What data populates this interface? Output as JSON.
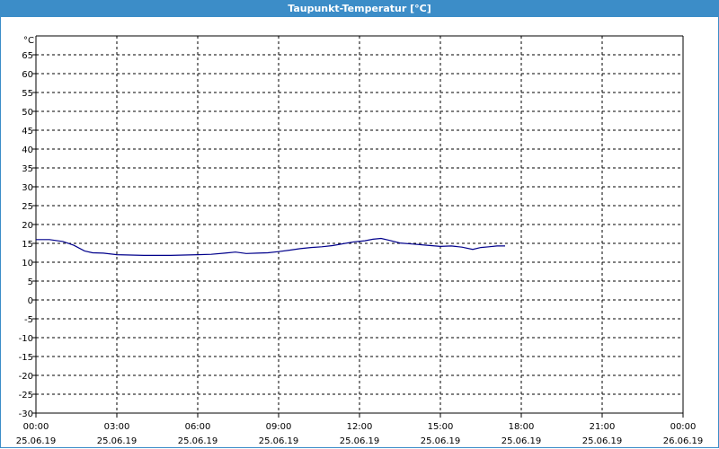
{
  "window": {
    "title": "Taupunkt-Temperatur [°C]"
  },
  "chart_data": {
    "type": "line",
    "title": "Taupunkt-Temperatur [°C]",
    "ylabel": "°C",
    "xlabel": "",
    "ylim": [
      -30,
      70
    ],
    "yticks": [
      -30,
      -25,
      -20,
      -15,
      -10,
      -5,
      0,
      5,
      10,
      15,
      20,
      25,
      30,
      35,
      40,
      45,
      50,
      55,
      60,
      65
    ],
    "xlim": [
      0,
      24
    ],
    "xticks": [
      {
        "h": 0,
        "time": "00:00",
        "date": "25.06.19"
      },
      {
        "h": 3,
        "time": "03:00",
        "date": "25.06.19"
      },
      {
        "h": 6,
        "time": "06:00",
        "date": "25.06.19"
      },
      {
        "h": 9,
        "time": "09:00",
        "date": "25.06.19"
      },
      {
        "h": 12,
        "time": "12:00",
        "date": "25.06.19"
      },
      {
        "h": 15,
        "time": "15:00",
        "date": "25.06.19"
      },
      {
        "h": 18,
        "time": "18:00",
        "date": "25.06.19"
      },
      {
        "h": 21,
        "time": "21:00",
        "date": "25.06.19"
      },
      {
        "h": 24,
        "time": "00:00",
        "date": "26.06.19"
      }
    ],
    "grid": true,
    "line_color": "#00008b",
    "series": [
      {
        "x": [
          0,
          0.5,
          1.0,
          1.4,
          1.8,
          2.1,
          2.5,
          3.0,
          3.5,
          4.0,
          4.5,
          5.0,
          5.5,
          6.0,
          6.5,
          7.0,
          7.4,
          7.8,
          8.2,
          8.6,
          9.0,
          9.4,
          9.8,
          10.2,
          10.6,
          11.0,
          11.4,
          11.8,
          12.2,
          12.5,
          12.8,
          13.1,
          13.5,
          14.0,
          14.5,
          15.0,
          15.4,
          15.8,
          16.2,
          16.5,
          16.8,
          17.1,
          17.4
        ],
        "values": [
          16.0,
          16.0,
          15.5,
          14.5,
          13.0,
          12.5,
          12.4,
          12.0,
          11.9,
          11.8,
          11.8,
          11.8,
          11.9,
          12.0,
          12.1,
          12.4,
          12.7,
          12.3,
          12.4,
          12.5,
          12.8,
          13.2,
          13.6,
          13.9,
          14.1,
          14.4,
          14.9,
          15.4,
          15.7,
          16.1,
          16.3,
          15.8,
          15.1,
          14.8,
          14.5,
          14.2,
          14.3,
          14.0,
          13.4,
          13.9,
          14.1,
          14.3,
          14.3
        ]
      }
    ]
  }
}
